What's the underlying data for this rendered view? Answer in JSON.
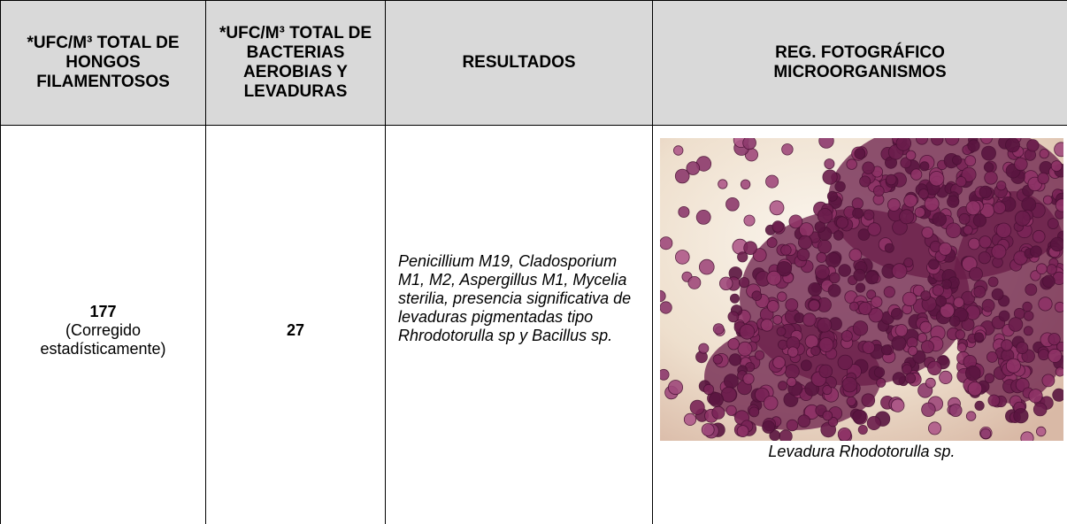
{
  "table": {
    "header": [
      "*UFC/M³ TOTAL DE HONGOS FILAMENTOSOS",
      "*UFC/M³ TOTAL DE BACTERIAS AEROBIAS Y LEVADURAS",
      "RESULTADOS",
      "REG. FOTOGRÁFICO MICROORGANISMOS"
    ],
    "row": {
      "fungi_value": 177,
      "fungi_note": "(Corregido estadísticamente)",
      "bacteria_value": 27,
      "results": "Penicillium M19, Cladosporium M1, M2, Aspergillus M1, Mycelia sterilia, presencia significativa de levaduras pigmentadas tipo Rhrodotorulla sp y Bacillus sp.",
      "photo_caption": "Levadura Rhodotorulla sp."
    }
  }
}
